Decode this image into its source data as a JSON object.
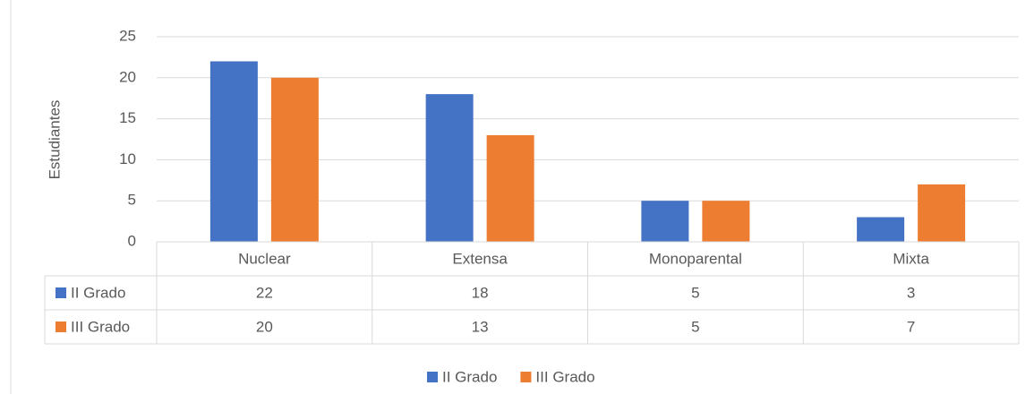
{
  "chart_data": {
    "type": "bar",
    "y_label": "Estudiantes",
    "categories": [
      "Nuclear",
      "Extensa",
      "Monoparental",
      "Mixta"
    ],
    "series": [
      {
        "name": "II Grado",
        "color": "#4472c4",
        "values": [
          22,
          18,
          5,
          3
        ]
      },
      {
        "name": "III Grado",
        "color": "#ed7d31",
        "values": [
          20,
          13,
          5,
          7
        ]
      }
    ],
    "ylim": [
      0,
      25
    ],
    "yticks": [
      0,
      5,
      10,
      15,
      20,
      25
    ],
    "grid": true,
    "legend": "bottom",
    "data_table": true
  }
}
